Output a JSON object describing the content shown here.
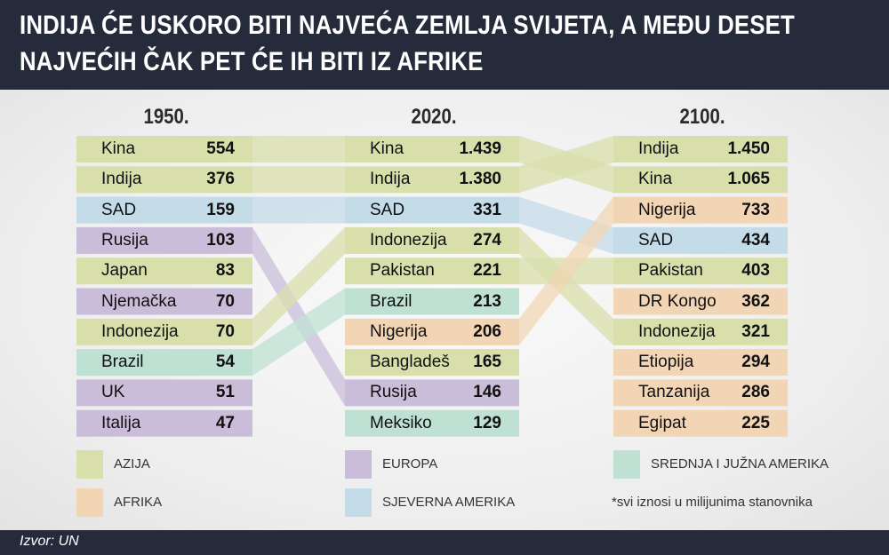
{
  "title": {
    "line1": "INDIJA ĆE USKORO BITI NAJVEĆA ZEMLJA SVIJETA, A MEĐU DESET",
    "line2": "NAJVEĆIH ČAK PET ĆE IH BITI IZ AFRIKE"
  },
  "colors": {
    "Azija": "#d8dfab",
    "Afrika": "#f1d5b5",
    "Europa": "#c9bdd9",
    "Sjeverna Amerika": "#c4dbe8",
    "Srednja i Južna Amerika": "#bfe1d4"
  },
  "chart_data": {
    "type": "table",
    "columns": [
      {
        "year": "1950.",
        "rows": [
          {
            "country": "Kina",
            "value": "554",
            "region": "Azija"
          },
          {
            "country": "Indija",
            "value": "376",
            "region": "Azija"
          },
          {
            "country": "SAD",
            "value": "159",
            "region": "Sjeverna Amerika"
          },
          {
            "country": "Rusija",
            "value": "103",
            "region": "Europa"
          },
          {
            "country": "Japan",
            "value": "83",
            "region": "Azija"
          },
          {
            "country": "Njemačka",
            "value": "70",
            "region": "Europa"
          },
          {
            "country": "Indonezija",
            "value": "70",
            "region": "Azija"
          },
          {
            "country": "Brazil",
            "value": "54",
            "region": "Srednja i Južna Amerika"
          },
          {
            "country": "UK",
            "value": "51",
            "region": "Europa"
          },
          {
            "country": "Italija",
            "value": "47",
            "region": "Europa"
          }
        ]
      },
      {
        "year": "2020.",
        "rows": [
          {
            "country": "Kina",
            "value": "1.439",
            "region": "Azija"
          },
          {
            "country": "Indija",
            "value": "1.380",
            "region": "Azija"
          },
          {
            "country": "SAD",
            "value": "331",
            "region": "Sjeverna Amerika"
          },
          {
            "country": "Indonezija",
            "value": "274",
            "region": "Azija"
          },
          {
            "country": "Pakistan",
            "value": "221",
            "region": "Azija"
          },
          {
            "country": "Brazil",
            "value": "213",
            "region": "Srednja i Južna Amerika"
          },
          {
            "country": "Nigerija",
            "value": "206",
            "region": "Afrika"
          },
          {
            "country": "Bangladeš",
            "value": "165",
            "region": "Azija"
          },
          {
            "country": "Rusija",
            "value": "146",
            "region": "Europa"
          },
          {
            "country": "Meksiko",
            "value": "129",
            "region": "Srednja i Južna Amerika"
          }
        ]
      },
      {
        "year": "2100.",
        "rows": [
          {
            "country": "Indija",
            "value": "1.450",
            "region": "Azija"
          },
          {
            "country": "Kina",
            "value": "1.065",
            "region": "Azija"
          },
          {
            "country": "Nigerija",
            "value": "733",
            "region": "Afrika"
          },
          {
            "country": "SAD",
            "value": "434",
            "region": "Sjeverna Amerika"
          },
          {
            "country": "Pakistan",
            "value": "403",
            "region": "Azija"
          },
          {
            "country": "DR Kongo",
            "value": "362",
            "region": "Afrika"
          },
          {
            "country": "Indonezija",
            "value": "321",
            "region": "Azija"
          },
          {
            "country": "Etiopija",
            "value": "294",
            "region": "Afrika"
          },
          {
            "country": "Tanzanija",
            "value": "286",
            "region": "Afrika"
          },
          {
            "country": "Egipat",
            "value": "225",
            "region": "Afrika"
          }
        ]
      }
    ]
  },
  "legend": [
    {
      "label": "AZIJA",
      "region": "Azija"
    },
    {
      "label": "AFRIKA",
      "region": "Afrika"
    },
    {
      "label": "EUROPA",
      "region": "Europa"
    },
    {
      "label": "SJEVERNA AMERIKA",
      "region": "Sjeverna Amerika"
    },
    {
      "label": "SREDNJA I JUŽNA AMERIKA",
      "region": "Srednja i Južna Amerika"
    }
  ],
  "note": "*svi iznosi u milijunima stanovnika",
  "source": "Izvor: UN"
}
